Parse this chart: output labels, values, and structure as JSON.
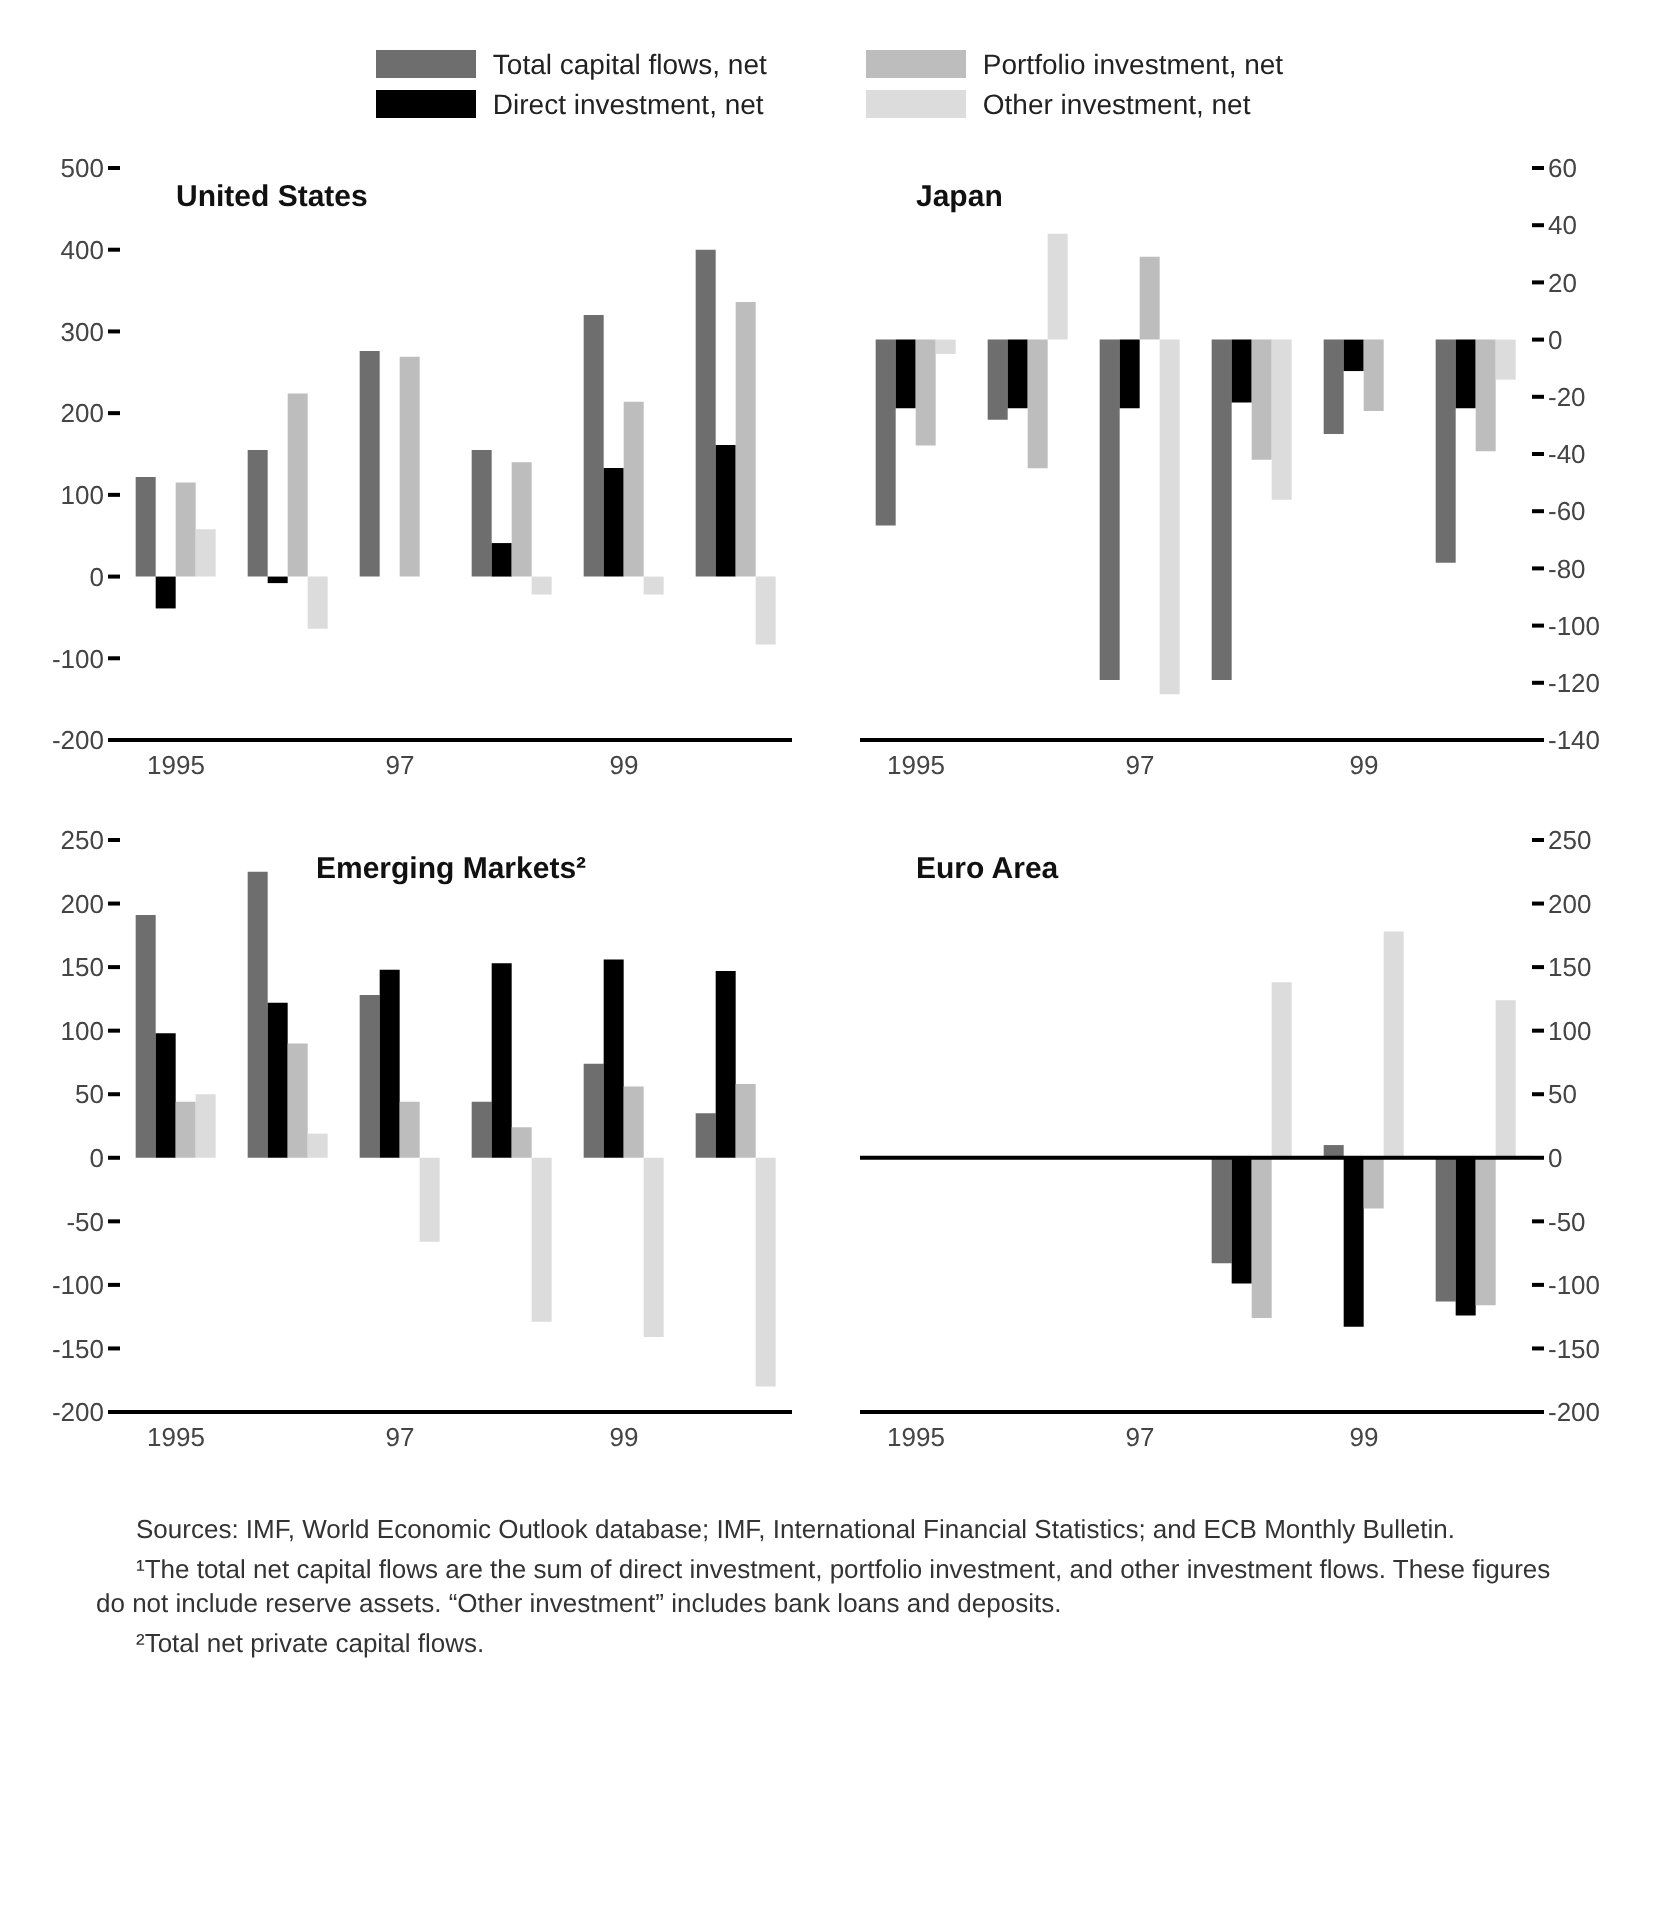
{
  "chart_data": [
    {
      "type": "bar",
      "title": "United States",
      "categories": [
        "1995",
        null,
        "97",
        null,
        "99",
        null
      ],
      "legend": "top",
      "ylim": [
        -200,
        500
      ],
      "yticks": [
        -200,
        -100,
        0,
        100,
        200,
        300,
        400,
        500
      ],
      "series": [
        {
          "name": "Total capital flows, net",
          "color": "#6e6e6e",
          "values": [
            122,
            155,
            276,
            155,
            320,
            400
          ]
        },
        {
          "name": "Direct investment, net",
          "color": "#000000",
          "values": [
            -39,
            -8,
            0,
            41,
            133,
            161
          ]
        },
        {
          "name": "Portfolio investment, net",
          "color": "#bdbdbd",
          "values": [
            115,
            224,
            269,
            140,
            214,
            336
          ]
        },
        {
          "name": "Other investment, net",
          "color": "#dcdcdc",
          "values": [
            58,
            -64,
            0,
            -22,
            -22,
            -83
          ]
        }
      ]
    },
    {
      "type": "bar",
      "title": "Japan",
      "categories": [
        "1995",
        null,
        "97",
        null,
        "99",
        null
      ],
      "ylim": [
        -140,
        60
      ],
      "yticks": [
        -140,
        -120,
        -100,
        -80,
        -60,
        -40,
        -20,
        0,
        20,
        40,
        60
      ],
      "series": [
        {
          "color": "#6e6e6e",
          "values": [
            -65,
            -28,
            -119,
            -119,
            -33,
            -78
          ]
        },
        {
          "color": "#000000",
          "values": [
            -24,
            -24,
            -24,
            -22,
            -11,
            -24
          ]
        },
        {
          "color": "#bdbdbd",
          "values": [
            -37,
            -45,
            29,
            -42,
            -25,
            -39
          ]
        },
        {
          "color": "#dcdcdc",
          "values": [
            -5,
            37,
            -124,
            -56,
            0,
            -14
          ]
        }
      ]
    },
    {
      "type": "bar",
      "title": "Emerging Markets²",
      "categories": [
        "1995",
        null,
        "97",
        null,
        "99",
        null
      ],
      "ylim": [
        -200,
        250
      ],
      "yticks": [
        -200,
        -150,
        -100,
        -50,
        0,
        50,
        100,
        150,
        200,
        250
      ],
      "series": [
        {
          "color": "#6e6e6e",
          "values": [
            191,
            225,
            128,
            44,
            74,
            35
          ]
        },
        {
          "color": "#000000",
          "values": [
            98,
            122,
            148,
            153,
            156,
            147
          ]
        },
        {
          "color": "#bdbdbd",
          "values": [
            44,
            90,
            44,
            24,
            56,
            58
          ]
        },
        {
          "color": "#dcdcdc",
          "values": [
            50,
            19,
            -66,
            -129,
            -141,
            -180
          ]
        }
      ]
    },
    {
      "type": "bar",
      "title": "Euro Area",
      "categories": [
        "1995",
        null,
        "97",
        null,
        "99",
        null
      ],
      "ylim": [
        -200,
        250
      ],
      "yticks": [
        -200,
        -150,
        -100,
        -50,
        0,
        50,
        100,
        150,
        200,
        250
      ],
      "ref_lines": [
        {
          "axis": "y",
          "value": 0,
          "color": "#000000"
        }
      ],
      "series": [
        {
          "color": "#6e6e6e",
          "values": [
            null,
            null,
            null,
            -83,
            10,
            -113
          ]
        },
        {
          "color": "#000000",
          "values": [
            null,
            null,
            null,
            -99,
            -133,
            -124
          ]
        },
        {
          "color": "#bdbdbd",
          "values": [
            null,
            null,
            null,
            -126,
            -40,
            -116
          ]
        },
        {
          "color": "#dcdcdc",
          "values": [
            null,
            null,
            null,
            138,
            178,
            124
          ]
        }
      ],
      "annotations": [
        "Sources: IMF, World Economic Outlook database; IMF, International Financial Statistics; and ECB Monthly Bulletin.",
        "¹The total net capital flows are the sum of direct investment, portfolio investment, and other investment flows. These figures do not include reserve assets. “Other investment” includes bank loans and deposits.",
        "²Total net private capital flows."
      ]
    }
  ]
}
